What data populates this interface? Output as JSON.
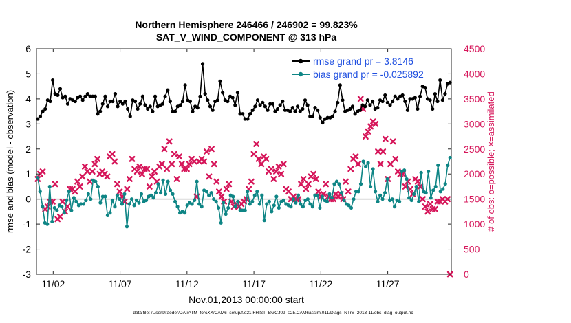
{
  "chart_data": {
    "type": "line",
    "title_line1": "Northern Hemisphere 246466 / 246902 = 99.823%",
    "title_line2": "SAT_V_WIND_COMPONENT @ 313 hPa",
    "xlabel": "Nov.01,2013 00:00:00 start",
    "ylabel_left": "rmse and bias (model - observation)",
    "ylabel_right": "# of obs: o=possible; ×=assimilated",
    "footer": "data file: /Users/raeder/DAI/ATM_forcXX/CAM6_setup/f.e21.FHIST_BGC.f09_025.CAM6assim.011/Diags_NTrS_2013-11/obs_diag_output.nc",
    "xlim": [
      0.0,
      31.0
    ],
    "x_ticks": [
      1.25,
      6.25,
      11.25,
      16.25,
      21.25,
      26.25
    ],
    "x_tick_labels": [
      "11/02",
      "11/07",
      "11/12",
      "11/17",
      "11/22",
      "11/27"
    ],
    "ylim_left": [
      -3,
      6
    ],
    "y_ticks_left": [
      "-3",
      "-2",
      "-1",
      "0",
      "1",
      "2",
      "3",
      "4",
      "5",
      "6"
    ],
    "ylim_right": [
      0,
      4500
    ],
    "y_ticks_right": [
      "0",
      "500",
      "1000",
      "1500",
      "2000",
      "2500",
      "3000",
      "3500",
      "4000",
      "4500"
    ],
    "colors": {
      "rmse": "#000000",
      "bias": "#0e8585",
      "obs": "#d6165a",
      "axis": "#262626",
      "zero": "#b3b3b3"
    },
    "legend": {
      "position": "top-right",
      "rmse_label": "rmse grand pr = 3.8146",
      "bias_label": "bias grand pr = -0.025892",
      "text_color": "#1f4fe0"
    },
    "series": [
      {
        "name": "rmse",
        "values": [
          3.2,
          3.3,
          3.5,
          3.6,
          3.95,
          3.9,
          4.75,
          4.2,
          4.15,
          4.4,
          4.05,
          4.1,
          3.8,
          4.0,
          3.95,
          3.9,
          4.05,
          4.1,
          3.95,
          4.1,
          4.2,
          4.1,
          4.1,
          4.1,
          3.4,
          3.5,
          3.8,
          4.1,
          3.7,
          3.9,
          3.9,
          4.2,
          3.7,
          3.9,
          3.8,
          3.9,
          3.6,
          3.3,
          3.95,
          3.9,
          3.6,
          3.8,
          4.1,
          3.75,
          3.6,
          3.7,
          3.5,
          4.1,
          3.7,
          3.75,
          3.8,
          4.1,
          4.35,
          3.9,
          3.5,
          3.5,
          3.7,
          3.75,
          3.9,
          4.55,
          3.95,
          3.9,
          3.5,
          3.7,
          3.65,
          4.1,
          5.4,
          4.2,
          3.95,
          3.7,
          3.55,
          3.9,
          3.95,
          4.7,
          4.25,
          3.95,
          3.9,
          4.1,
          4.05,
          3.75,
          4.25,
          3.4,
          3.4,
          3.2,
          3.2,
          3.4,
          3.55,
          3.7,
          3.95,
          3.75,
          3.85,
          3.7,
          3.55,
          3.8,
          3.8,
          3.5,
          3.6,
          3.75,
          3.9,
          3.55,
          3.55,
          3.5,
          3.65,
          3.5,
          3.7,
          3.5,
          3.6,
          3.95,
          3.75,
          3.3,
          3.3,
          3.65,
          3.55,
          3.25,
          3.05,
          3.2,
          3.25,
          3.25,
          3.3,
          3.5,
          3.85,
          4.55,
          3.95,
          3.5,
          3.55,
          3.6,
          3.7,
          3.4,
          3.5,
          3.55,
          3.75,
          3.7,
          3.95,
          3.75,
          3.9,
          3.6,
          3.65,
          3.95,
          3.9,
          4.15,
          3.85,
          3.75,
          3.9,
          4.1,
          4.0,
          4.1,
          4.15,
          3.9,
          3.55,
          4.0,
          4.0,
          4.05,
          3.6,
          4.1,
          4.5,
          4.45,
          4.0,
          3.95,
          3.6,
          4.2,
          3.9,
          4.75,
          3.95,
          4.2,
          4.6,
          4.65
        ]
      },
      {
        "name": "bias",
        "values": [
          0.85,
          0.3,
          -0.3,
          -0.95,
          -1.0,
          0.5,
          -0.9,
          -0.35,
          -0.45,
          -0.25,
          -0.3,
          -0.55,
          -0.05,
          0.3,
          -0.45,
          0.05,
          -0.1,
          -0.25,
          -0.2,
          -0.2,
          -0.05,
          0.2,
          0.0,
          0.75,
          0.7,
          0.5,
          -0.15,
          0.1,
          0.1,
          -0.65,
          -0.55,
          -0.05,
          -0.3,
          0.15,
          0.0,
          -0.2,
          0.2,
          -1.1,
          -0.2,
          0.0,
          -0.25,
          -0.05,
          -0.15,
          0.2,
          -0.1,
          -0.05,
          0.1,
          0.15,
          0.05,
          0.25,
          0.6,
          0.25,
          0.75,
          0.2,
          0.7,
          0.35,
          0.2,
          -0.1,
          -0.3,
          -0.55,
          -0.5,
          -0.55,
          -0.25,
          -0.15,
          -0.2,
          -0.05,
          0.7,
          -0.2,
          -0.3,
          0.35,
          0.3,
          0.15,
          0.25,
          0.0,
          -0.1,
          -0.35,
          -0.95,
          -0.15,
          -0.6,
          -0.35,
          0.15,
          0.1,
          -0.3,
          -0.1,
          -0.45,
          -0.45,
          -0.45,
          0.3,
          -0.2,
          -0.1,
          0.15,
          0.3,
          -0.2,
          0.15,
          -0.85,
          -0.2,
          -0.1,
          -0.5,
          -0.25,
          0.1,
          -0.35,
          -0.1,
          -0.05,
          -0.2,
          -0.25,
          -0.3,
          0.0,
          -0.15,
          0.15,
          -0.2,
          -0.3,
          -0.05,
          0.0,
          -0.2,
          -0.3,
          0.15,
          0.15,
          -0.35,
          0.1,
          -0.05,
          -0.1,
          0.2,
          0.05,
          0.6,
          0.7,
          0.6,
          0.25,
          -0.05,
          -0.2,
          -0.25,
          -0.35,
          0.0,
          0.3,
          0.3,
          0.6,
          1.5,
          1.3,
          1.45,
          0.5,
          1.2,
          0.3,
          -0.1,
          0.15,
          0.0,
          0.25,
          0.8,
          -0.05,
          0.0,
          -0.3,
          -0.05,
          -0.1,
          1.1,
          1.15,
          0.8,
          0.05,
          -0.05,
          0.2,
          0.5,
          -0.1,
          1.05,
          0.3,
          0.25,
          1.1,
          0.05,
          0.35,
          0.5,
          1.35,
          0.3,
          0.4,
          0.6,
          1.35,
          1.65
        ]
      }
    ],
    "obs": {
      "name": "# of obs",
      "values": [
        1900,
        2000,
        2050,
        1300,
        1350,
        1450,
        1450,
        1800,
        1100,
        1150,
        1450,
        1250,
        1350,
        1700,
        1700,
        1650,
        1850,
        1750,
        1950,
        2150,
        2050,
        1850,
        2050,
        2200,
        2300,
        2000,
        2050,
        2000,
        1950,
        2350,
        2400,
        2250,
        1800,
        1650,
        1550,
        1450,
        1700,
        1900,
        2300,
        2100,
        2050,
        2150,
        2000,
        2100,
        2100,
        1750,
        1950,
        2050,
        1850,
        2150,
        2200,
        2500,
        2100,
        2650,
        2200,
        2400,
        1900,
        2350,
        2200,
        2100,
        2100,
        2200,
        2300,
        2250,
        1550,
        2250,
        2300,
        2250,
        2450,
        1950,
        2500,
        2200,
        1850,
        1650,
        1550,
        1450,
        1700,
        1800,
        1450,
        1350,
        1400,
        1350,
        1400,
        1450,
        1500,
        1700,
        1850,
        2400,
        2600,
        2300,
        2200,
        2350,
        2300,
        2050,
        2100,
        1900,
        2050,
        2150,
        2000,
        2200,
        1700,
        1650,
        1500,
        1550,
        1500,
        1500,
        1800,
        1900,
        1700,
        1800,
        1950,
        2000,
        1900,
        1650,
        1550,
        1600,
        1800,
        1550,
        1500,
        1500,
        1600,
        1550,
        1600,
        1500,
        1850,
        1650,
        2100,
        2300,
        2350,
        2200,
        3500,
        3300,
        2750,
        2850,
        2950,
        3050,
        3000,
        2450,
        2200,
        2450,
        2700,
        1900,
        2200,
        2650,
        2300,
        2050,
        2000,
        2000,
        1750,
        1850,
        1700,
        1600,
        1900,
        1850,
        1750,
        1500,
        1350,
        1250,
        1400,
        1300,
        1300,
        1450,
        1450,
        1500,
        1450,
        1500,
        0
      ]
    }
  }
}
